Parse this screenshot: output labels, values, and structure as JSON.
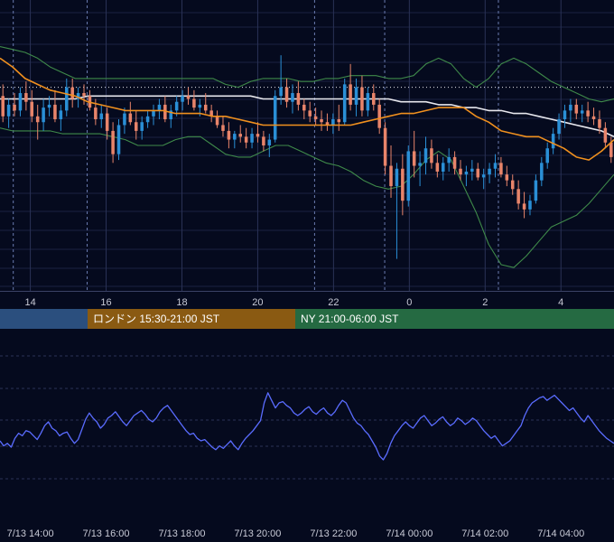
{
  "colors": {
    "background": "#050a1e",
    "grid": "#1a2242",
    "candle_up": "#2a8fd6",
    "candle_down": "#e8846a",
    "bollinger": "#3f8a4a",
    "ma_short": "#f0901e",
    "ma_long": "#e8e8ee",
    "oscillator": "#5a6cff",
    "axis_text": "#c8cad6",
    "session_tokyo": "#2b4f7e",
    "session_london": "#8a5a12",
    "session_ny": "#256a42"
  },
  "sessions": [
    {
      "label": "",
      "color": "#2b4f7e"
    },
    {
      "label": "ロンドン 15:30-21:00 JST",
      "color": "#8a5a12"
    },
    {
      "label": "NY 21:00-06:00 JST",
      "color": "#256a42"
    }
  ],
  "chart_data": [
    {
      "type": "candlestick",
      "title": "",
      "x_tick_labels": [
        "14",
        "16",
        "18",
        "20",
        "22",
        "0",
        "2",
        "4"
      ],
      "x_tick_hours": [
        14,
        16,
        18,
        20,
        22,
        24,
        26,
        28
      ],
      "x_range_hours": [
        13.2,
        29.4
      ],
      "y_range": [
        0,
        100
      ],
      "grid": true,
      "session_markers_hours": [
        13.55,
        15.5,
        21.5,
        23.35,
        26.35
      ],
      "reference_line_value": 70,
      "candles": [
        {
          "o": 67,
          "h": 71,
          "l": 58,
          "c": 60
        },
        {
          "o": 60,
          "h": 66,
          "l": 56,
          "c": 64
        },
        {
          "o": 64,
          "h": 68,
          "l": 60,
          "c": 62
        },
        {
          "o": 62,
          "h": 70,
          "l": 60,
          "c": 68
        },
        {
          "o": 68,
          "h": 72,
          "l": 62,
          "c": 65
        },
        {
          "o": 65,
          "h": 69,
          "l": 58,
          "c": 60
        },
        {
          "o": 60,
          "h": 64,
          "l": 52,
          "c": 58
        },
        {
          "o": 58,
          "h": 66,
          "l": 55,
          "c": 63
        },
        {
          "o": 63,
          "h": 67,
          "l": 60,
          "c": 64
        },
        {
          "o": 64,
          "h": 69,
          "l": 58,
          "c": 59
        },
        {
          "o": 59,
          "h": 64,
          "l": 55,
          "c": 62
        },
        {
          "o": 62,
          "h": 73,
          "l": 60,
          "c": 70
        },
        {
          "o": 70,
          "h": 73,
          "l": 63,
          "c": 66
        },
        {
          "o": 66,
          "h": 70,
          "l": 63,
          "c": 68
        },
        {
          "o": 68,
          "h": 71,
          "l": 64,
          "c": 67
        },
        {
          "o": 67,
          "h": 69,
          "l": 62,
          "c": 63
        },
        {
          "o": 63,
          "h": 66,
          "l": 57,
          "c": 59
        },
        {
          "o": 59,
          "h": 64,
          "l": 56,
          "c": 61
        },
        {
          "o": 61,
          "h": 63,
          "l": 52,
          "c": 55
        },
        {
          "o": 55,
          "h": 58,
          "l": 44,
          "c": 47
        },
        {
          "o": 47,
          "h": 59,
          "l": 45,
          "c": 57
        },
        {
          "o": 57,
          "h": 63,
          "l": 54,
          "c": 61
        },
        {
          "o": 61,
          "h": 65,
          "l": 57,
          "c": 58
        },
        {
          "o": 58,
          "h": 62,
          "l": 52,
          "c": 55
        },
        {
          "o": 55,
          "h": 60,
          "l": 52,
          "c": 58
        },
        {
          "o": 58,
          "h": 62,
          "l": 56,
          "c": 60
        },
        {
          "o": 60,
          "h": 64,
          "l": 57,
          "c": 62
        },
        {
          "o": 62,
          "h": 66,
          "l": 59,
          "c": 64
        },
        {
          "o": 64,
          "h": 67,
          "l": 58,
          "c": 59
        },
        {
          "o": 59,
          "h": 64,
          "l": 56,
          "c": 62
        },
        {
          "o": 62,
          "h": 67,
          "l": 60,
          "c": 65
        },
        {
          "o": 65,
          "h": 69,
          "l": 62,
          "c": 67
        },
        {
          "o": 67,
          "h": 70,
          "l": 64,
          "c": 66
        },
        {
          "o": 66,
          "h": 69,
          "l": 62,
          "c": 63
        },
        {
          "o": 63,
          "h": 66,
          "l": 60,
          "c": 64
        },
        {
          "o": 64,
          "h": 68,
          "l": 61,
          "c": 62
        },
        {
          "o": 62,
          "h": 64,
          "l": 58,
          "c": 60
        },
        {
          "o": 60,
          "h": 62,
          "l": 56,
          "c": 57
        },
        {
          "o": 57,
          "h": 60,
          "l": 53,
          "c": 55
        },
        {
          "o": 55,
          "h": 58,
          "l": 49,
          "c": 52
        },
        {
          "o": 52,
          "h": 55,
          "l": 49,
          "c": 54
        },
        {
          "o": 54,
          "h": 57,
          "l": 51,
          "c": 53
        },
        {
          "o": 53,
          "h": 56,
          "l": 49,
          "c": 51
        },
        {
          "o": 51,
          "h": 56,
          "l": 49,
          "c": 54
        },
        {
          "o": 54,
          "h": 58,
          "l": 51,
          "c": 53
        },
        {
          "o": 53,
          "h": 55,
          "l": 48,
          "c": 50
        },
        {
          "o": 50,
          "h": 54,
          "l": 46,
          "c": 52
        },
        {
          "o": 52,
          "h": 69,
          "l": 51,
          "c": 67
        },
        {
          "o": 67,
          "h": 81,
          "l": 64,
          "c": 70
        },
        {
          "o": 70,
          "h": 73,
          "l": 63,
          "c": 65
        },
        {
          "o": 65,
          "h": 71,
          "l": 61,
          "c": 68
        },
        {
          "o": 68,
          "h": 72,
          "l": 62,
          "c": 64
        },
        {
          "o": 64,
          "h": 66,
          "l": 59,
          "c": 62
        },
        {
          "o": 62,
          "h": 65,
          "l": 58,
          "c": 60
        },
        {
          "o": 60,
          "h": 63,
          "l": 57,
          "c": 59
        },
        {
          "o": 59,
          "h": 62,
          "l": 55,
          "c": 58
        },
        {
          "o": 58,
          "h": 61,
          "l": 55,
          "c": 57
        },
        {
          "o": 57,
          "h": 61,
          "l": 54,
          "c": 59
        },
        {
          "o": 59,
          "h": 64,
          "l": 55,
          "c": 58
        },
        {
          "o": 58,
          "h": 73,
          "l": 57,
          "c": 71
        },
        {
          "o": 71,
          "h": 78,
          "l": 62,
          "c": 64
        },
        {
          "o": 64,
          "h": 73,
          "l": 60,
          "c": 70
        },
        {
          "o": 70,
          "h": 74,
          "l": 60,
          "c": 62
        },
        {
          "o": 62,
          "h": 70,
          "l": 60,
          "c": 68
        },
        {
          "o": 68,
          "h": 71,
          "l": 62,
          "c": 64
        },
        {
          "o": 64,
          "h": 66,
          "l": 54,
          "c": 56
        },
        {
          "o": 56,
          "h": 58,
          "l": 40,
          "c": 43
        },
        {
          "o": 43,
          "h": 50,
          "l": 32,
          "c": 36
        },
        {
          "o": 36,
          "h": 44,
          "l": 11,
          "c": 42
        },
        {
          "o": 42,
          "h": 47,
          "l": 26,
          "c": 31
        },
        {
          "o": 31,
          "h": 50,
          "l": 29,
          "c": 48
        },
        {
          "o": 48,
          "h": 55,
          "l": 39,
          "c": 43
        },
        {
          "o": 43,
          "h": 48,
          "l": 36,
          "c": 44
        },
        {
          "o": 44,
          "h": 53,
          "l": 40,
          "c": 49
        },
        {
          "o": 49,
          "h": 52,
          "l": 42,
          "c": 44
        },
        {
          "o": 44,
          "h": 47,
          "l": 39,
          "c": 41
        },
        {
          "o": 41,
          "h": 46,
          "l": 38,
          "c": 44
        },
        {
          "o": 44,
          "h": 49,
          "l": 41,
          "c": 46
        },
        {
          "o": 46,
          "h": 48,
          "l": 40,
          "c": 42
        },
        {
          "o": 42,
          "h": 45,
          "l": 38,
          "c": 40
        },
        {
          "o": 40,
          "h": 43,
          "l": 36,
          "c": 41
        },
        {
          "o": 41,
          "h": 45,
          "l": 38,
          "c": 42
        },
        {
          "o": 42,
          "h": 44,
          "l": 38,
          "c": 39
        },
        {
          "o": 39,
          "h": 42,
          "l": 35,
          "c": 40
        },
        {
          "o": 40,
          "h": 44,
          "l": 37,
          "c": 42
        },
        {
          "o": 42,
          "h": 47,
          "l": 39,
          "c": 44
        },
        {
          "o": 44,
          "h": 46,
          "l": 39,
          "c": 40
        },
        {
          "o": 40,
          "h": 43,
          "l": 36,
          "c": 38
        },
        {
          "o": 38,
          "h": 40,
          "l": 33,
          "c": 35
        },
        {
          "o": 35,
          "h": 38,
          "l": 28,
          "c": 30
        },
        {
          "o": 30,
          "h": 34,
          "l": 25,
          "c": 28
        },
        {
          "o": 28,
          "h": 33,
          "l": 26,
          "c": 31
        },
        {
          "o": 31,
          "h": 40,
          "l": 30,
          "c": 38
        },
        {
          "o": 38,
          "h": 46,
          "l": 36,
          "c": 44
        },
        {
          "o": 44,
          "h": 51,
          "l": 42,
          "c": 49
        },
        {
          "o": 49,
          "h": 56,
          "l": 47,
          "c": 54
        },
        {
          "o": 54,
          "h": 61,
          "l": 52,
          "c": 59
        },
        {
          "o": 59,
          "h": 64,
          "l": 56,
          "c": 62
        },
        {
          "o": 62,
          "h": 66,
          "l": 58,
          "c": 64
        },
        {
          "o": 64,
          "h": 66,
          "l": 59,
          "c": 61
        },
        {
          "o": 61,
          "h": 64,
          "l": 58,
          "c": 62
        },
        {
          "o": 62,
          "h": 65,
          "l": 58,
          "c": 60
        },
        {
          "o": 60,
          "h": 63,
          "l": 57,
          "c": 59
        },
        {
          "o": 59,
          "h": 62,
          "l": 54,
          "c": 56
        },
        {
          "o": 56,
          "h": 58,
          "l": 49,
          "c": 51
        },
        {
          "o": 51,
          "h": 53,
          "l": 44,
          "c": 46
        }
      ],
      "bollinger_upper": [
        84,
        83,
        82,
        80,
        77,
        75,
        73,
        73,
        73,
        73,
        73,
        73,
        73,
        73,
        73,
        73,
        73,
        73,
        71,
        70,
        72,
        73,
        73,
        73,
        72,
        72,
        73,
        73,
        74,
        74,
        74,
        73,
        73,
        74,
        78,
        80,
        78,
        73,
        70,
        73,
        78,
        80,
        78,
        75,
        72,
        70,
        68,
        66,
        65,
        66
      ],
      "bollinger_lower": [
        56,
        55,
        55,
        55,
        55,
        54,
        54,
        54,
        54,
        53,
        52,
        50,
        50,
        50,
        52,
        53,
        53,
        50,
        47,
        46,
        46,
        48,
        50,
        50,
        48,
        46,
        44,
        43,
        41,
        38,
        36,
        35,
        36,
        40,
        45,
        48,
        45,
        36,
        27,
        16,
        9,
        8,
        12,
        17,
        22,
        24,
        26,
        30,
        35,
        40
      ],
      "ma_short": [
        80,
        77,
        73,
        71,
        69,
        68,
        67,
        65,
        64,
        63,
        62,
        62,
        62,
        62,
        61,
        61,
        61,
        60,
        60,
        59,
        58,
        57,
        57,
        57,
        57,
        57,
        57,
        57,
        57,
        58,
        59,
        60,
        61,
        61,
        62,
        63,
        63,
        63,
        60,
        58,
        55,
        54,
        53,
        53,
        51,
        49,
        46,
        45,
        48,
        52
      ],
      "ma_long": [
        66,
        66,
        66,
        66,
        66,
        66,
        66,
        67,
        67,
        67,
        67,
        67,
        67,
        67,
        67,
        67,
        67,
        67,
        67,
        67,
        67,
        66,
        66,
        66,
        66,
        66,
        66,
        66,
        66,
        66,
        66,
        66,
        65,
        65,
        65,
        64,
        64,
        63,
        63,
        62,
        62,
        61,
        61,
        60,
        59,
        58,
        57,
        56,
        55,
        53
      ]
    },
    {
      "type": "line",
      "title": "",
      "x_tick_labels": [
        "7/13 14:00",
        "7/13 16:00",
        "7/13 18:00",
        "7/13 20:00",
        "7/13 22:00",
        "7/14 00:00",
        "7/14 02:00",
        "7/14 04:00"
      ],
      "x_tick_hours": [
        14,
        16,
        18,
        20,
        22,
        24,
        26,
        28
      ],
      "x_range_hours": [
        13.2,
        29.4
      ],
      "y_range": [
        0,
        100
      ],
      "grid": true,
      "series": [
        {
          "values": [
            40,
            36,
            38,
            35,
            42,
            46,
            44,
            48,
            47,
            44,
            41,
            46,
            52,
            55,
            50,
            48,
            44,
            46,
            47,
            42,
            38,
            41,
            49,
            57,
            62,
            58,
            55,
            50,
            53,
            58,
            60,
            63,
            59,
            55,
            52,
            56,
            60,
            62,
            64,
            61,
            57,
            55,
            58,
            63,
            66,
            68,
            64,
            60,
            56,
            52,
            48,
            45,
            46,
            42,
            40,
            41,
            38,
            35,
            33,
            36,
            34,
            37,
            40,
            36,
            33,
            38,
            42,
            45,
            48,
            52,
            56,
            70,
            78,
            72,
            66,
            70,
            71,
            68,
            66,
            62,
            60,
            62,
            65,
            67,
            63,
            61,
            64,
            66,
            62,
            60,
            63,
            68,
            72,
            70,
            64,
            58,
            54,
            52,
            48,
            45,
            40,
            35,
            28,
            25,
            30,
            38,
            44,
            48,
            52,
            55,
            52,
            50,
            54,
            58,
            60,
            56,
            52,
            54,
            57,
            59,
            55,
            52,
            54,
            58,
            56,
            53,
            55,
            58,
            56,
            52,
            48,
            45,
            42,
            44,
            40,
            36,
            38,
            40,
            44,
            48,
            52,
            60,
            66,
            70,
            72,
            74,
            75,
            72,
            74,
            76,
            73,
            70,
            67,
            64,
            66,
            62,
            58,
            55,
            60,
            56,
            52,
            48,
            45,
            42,
            40,
            38
          ]
        }
      ]
    }
  ]
}
